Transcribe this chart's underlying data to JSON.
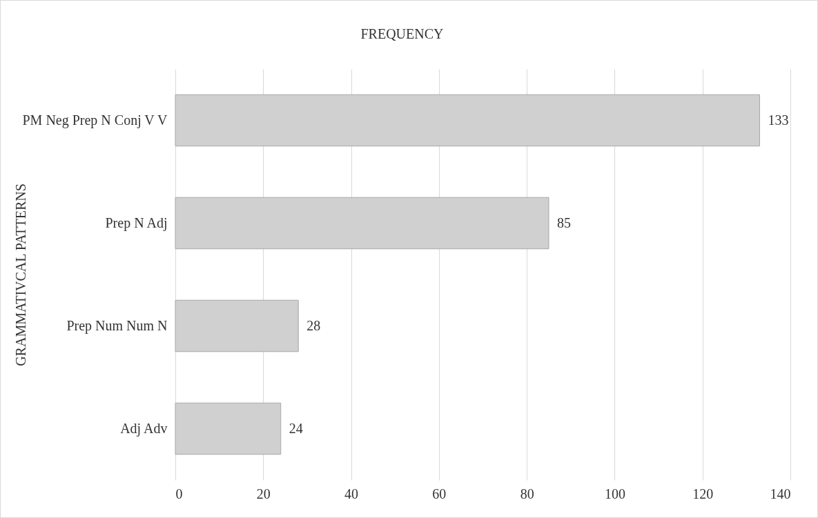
{
  "chart_data": {
    "type": "bar",
    "orientation": "horizontal",
    "title": "FREQUENCY",
    "ylabel": "GRAMMATIVCAL PATTERNS",
    "categories": [
      "PM Neg Prep N Conj V V",
      "Prep N Adj",
      "Prep Num Num N",
      "Adj Adv"
    ],
    "values": [
      133,
      85,
      28,
      24
    ],
    "color": "#d0d0d0",
    "xlim": [
      0,
      140
    ],
    "xticks": [
      0,
      20,
      40,
      60,
      80,
      100,
      120,
      140
    ],
    "grid": "x",
    "data_labels": true
  }
}
